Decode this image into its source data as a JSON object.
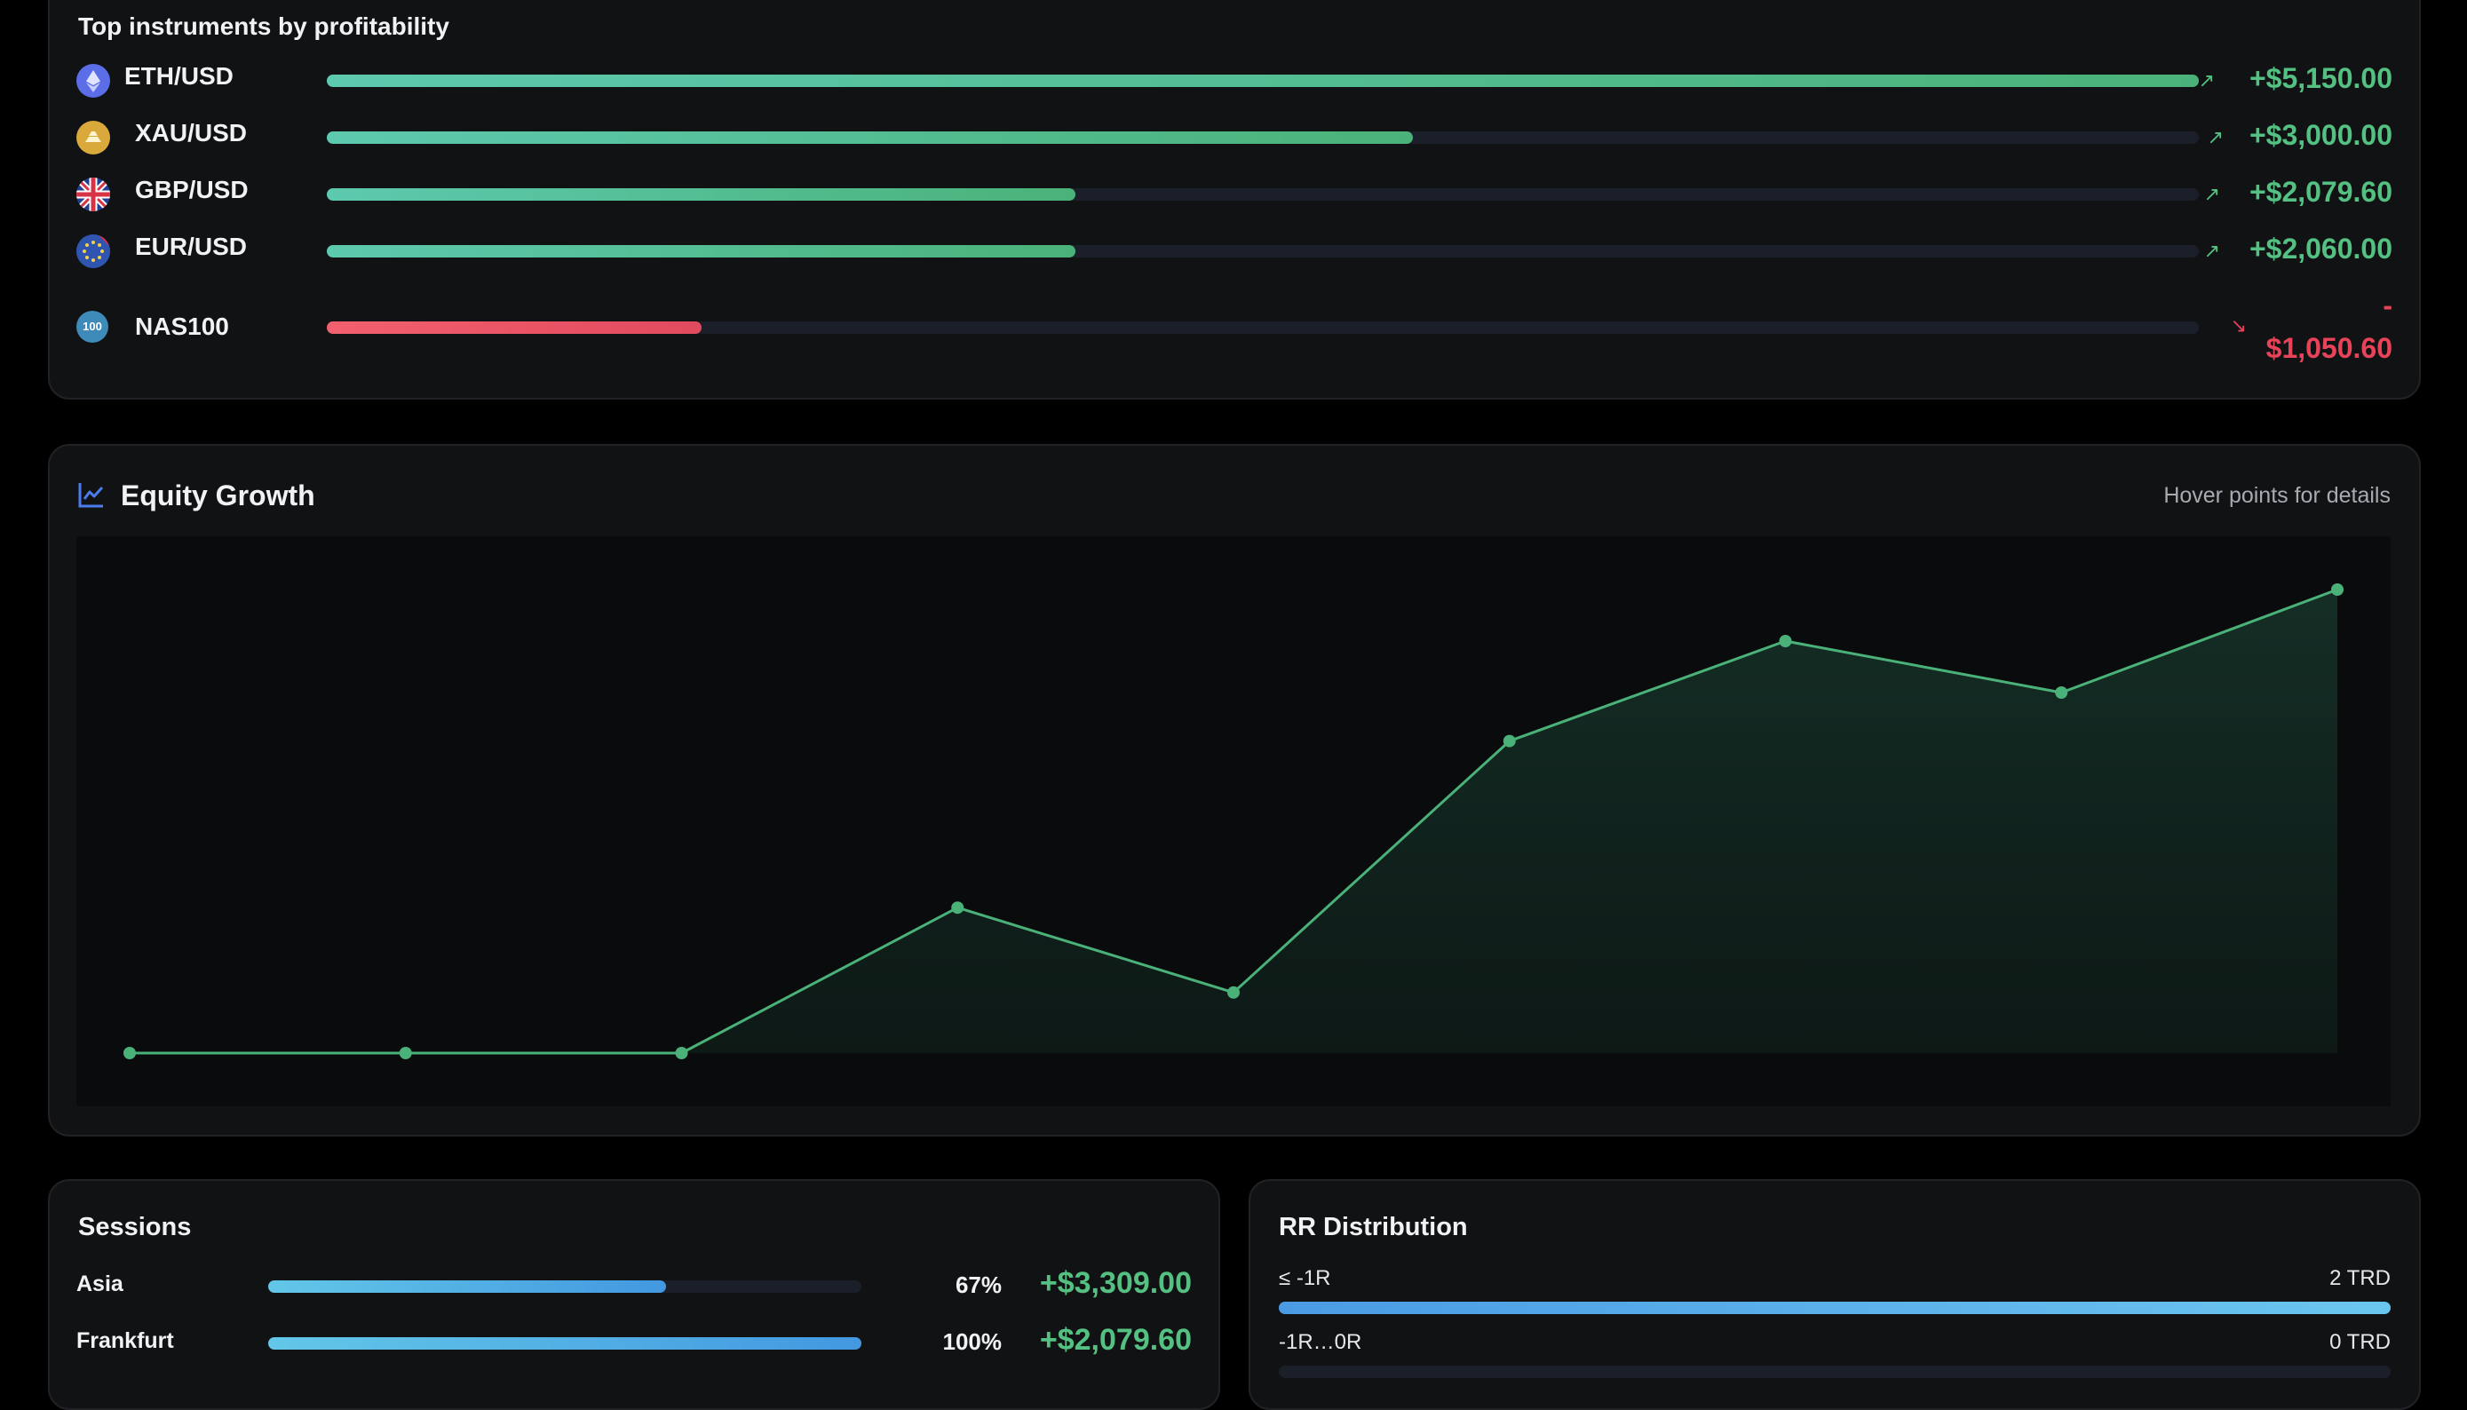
{
  "instruments": {
    "title": "Top instruments by profitability",
    "items": [
      {
        "name": "ETH/USD",
        "value": "+$5,150.00",
        "fill": 1.0,
        "trend": "up",
        "icon": "ethereum-icon"
      },
      {
        "name": "XAU/USD",
        "value": "+$3,000.00",
        "fill": 0.58,
        "trend": "up",
        "icon": "gold-icon"
      },
      {
        "name": "GBP/USD",
        "value": "+$2,079.60",
        "fill": 0.4,
        "trend": "up",
        "icon": "uk-flag-icon"
      },
      {
        "name": "EUR/USD",
        "value": "+$2,060.00",
        "fill": 0.4,
        "trend": "up",
        "icon": "eu-flag-icon"
      },
      {
        "name": "NAS100",
        "value_sign": "-",
        "value": "$1,050.60",
        "fill": 0.2,
        "trend": "down",
        "icon": "nas100-icon",
        "badge": "100"
      }
    ]
  },
  "equity": {
    "title": "Equity Growth",
    "hint": "Hover points for details",
    "icon": "line-chart-icon"
  },
  "chart_data": {
    "type": "area",
    "title": "Equity Growth",
    "x": [
      1,
      2,
      3,
      4,
      5,
      6,
      7,
      8,
      9
    ],
    "values": [
      0,
      0,
      0,
      2400,
      1000,
      5150,
      6800,
      5950,
      7650
    ],
    "grid": false,
    "color": "#4ab279"
  },
  "sessions": {
    "title": "Sessions",
    "items": [
      {
        "name": "Asia",
        "pct": "67%",
        "fill": 0.67,
        "value": "+$3,309.00"
      },
      {
        "name": "Frankfurt",
        "pct": "100%",
        "fill": 1.0,
        "value": "+$2,079.60"
      }
    ]
  },
  "rr": {
    "title": "RR Distribution",
    "items": [
      {
        "label": "≤ -1R",
        "count": "2 TRD",
        "fill": 1.0
      },
      {
        "label": "-1R…0R",
        "count": "0 TRD",
        "fill": 0.0
      }
    ]
  },
  "colors": {
    "positive": "#54c081",
    "negative": "#e84359",
    "bar_positive": "#5dc9ae",
    "bar_negative": "#f2606f",
    "session_bar": "#4398e0",
    "accent_icon": "#4a7cf0"
  }
}
